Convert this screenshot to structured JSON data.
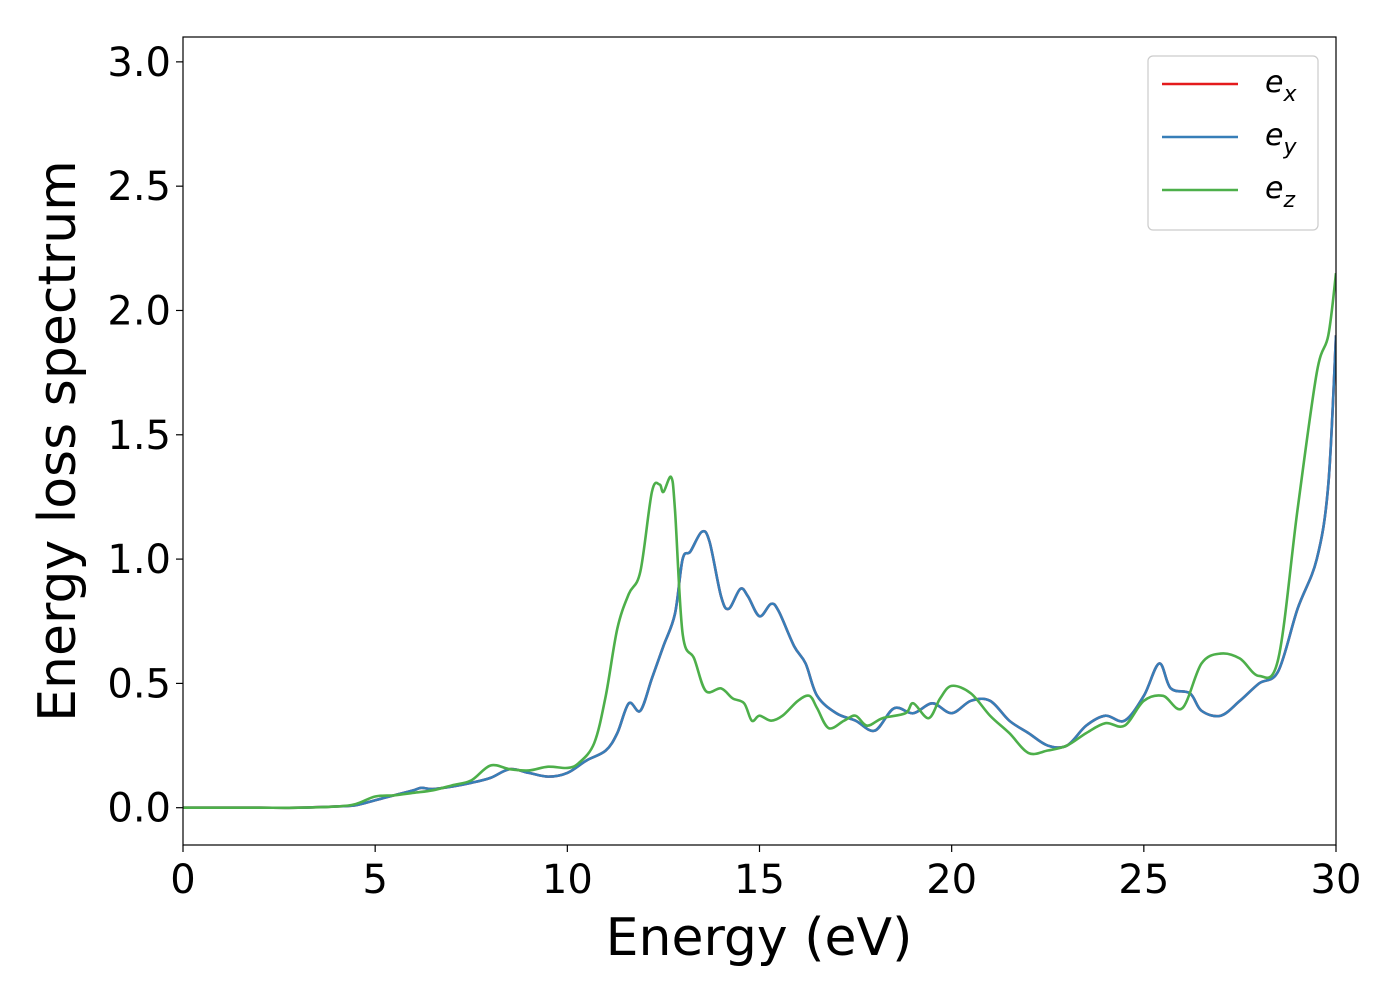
{
  "chart_data": {
    "type": "line",
    "title": "",
    "xlabel": "Energy (eV)",
    "ylabel": "Energy loss spectrum",
    "xlim": [
      0,
      30
    ],
    "ylim": [
      -0.15,
      3.1
    ],
    "xticks": [
      0,
      5,
      10,
      15,
      20,
      25,
      30
    ],
    "xtick_labels": [
      "0",
      "5",
      "10",
      "15",
      "20",
      "25",
      "30"
    ],
    "yticks": [
      0.0,
      0.5,
      1.0,
      1.5,
      2.0,
      2.5,
      3.0
    ],
    "ytick_labels": [
      "0.0",
      "0.5",
      "1.0",
      "1.5",
      "2.0",
      "2.5",
      "3.0"
    ],
    "grid": false,
    "legend_position": "top-right",
    "series": [
      {
        "name": "e_x",
        "legend_main": "e",
        "legend_sub": "x",
        "color": "#e41a1c",
        "points": [
          [
            0,
            0
          ],
          [
            1,
            0
          ],
          [
            2,
            0
          ],
          [
            3,
            0
          ],
          [
            4,
            0.005
          ],
          [
            4.5,
            0.01
          ],
          [
            5,
            0.03
          ],
          [
            5.5,
            0.05
          ],
          [
            6,
            0.07
          ],
          [
            6.2,
            0.08
          ],
          [
            6.5,
            0.075
          ],
          [
            7,
            0.085
          ],
          [
            7.5,
            0.1
          ],
          [
            8,
            0.12
          ],
          [
            8.5,
            0.155
          ],
          [
            9,
            0.14
          ],
          [
            9.5,
            0.125
          ],
          [
            10,
            0.14
          ],
          [
            10.5,
            0.19
          ],
          [
            11,
            0.23
          ],
          [
            11.3,
            0.3
          ],
          [
            11.6,
            0.42
          ],
          [
            11.9,
            0.39
          ],
          [
            12.2,
            0.52
          ],
          [
            12.5,
            0.65
          ],
          [
            12.8,
            0.78
          ],
          [
            13.0,
            1.0
          ],
          [
            13.2,
            1.03
          ],
          [
            13.5,
            1.11
          ],
          [
            13.7,
            1.07
          ],
          [
            14.0,
            0.85
          ],
          [
            14.2,
            0.8
          ],
          [
            14.5,
            0.88
          ],
          [
            14.7,
            0.85
          ],
          [
            15.0,
            0.77
          ],
          [
            15.3,
            0.82
          ],
          [
            15.5,
            0.79
          ],
          [
            15.9,
            0.65
          ],
          [
            16.2,
            0.58
          ],
          [
            16.5,
            0.45
          ],
          [
            17.0,
            0.38
          ],
          [
            17.5,
            0.35
          ],
          [
            18.0,
            0.31
          ],
          [
            18.5,
            0.4
          ],
          [
            19.0,
            0.38
          ],
          [
            19.5,
            0.42
          ],
          [
            20.0,
            0.38
          ],
          [
            20.5,
            0.43
          ],
          [
            21.0,
            0.43
          ],
          [
            21.5,
            0.35
          ],
          [
            22.0,
            0.3
          ],
          [
            22.5,
            0.25
          ],
          [
            23.0,
            0.25
          ],
          [
            23.5,
            0.33
          ],
          [
            24.0,
            0.37
          ],
          [
            24.5,
            0.35
          ],
          [
            25.0,
            0.45
          ],
          [
            25.4,
            0.58
          ],
          [
            25.7,
            0.48
          ],
          [
            26.2,
            0.46
          ],
          [
            26.5,
            0.39
          ],
          [
            27.0,
            0.37
          ],
          [
            27.5,
            0.43
          ],
          [
            28.0,
            0.5
          ],
          [
            28.5,
            0.55
          ],
          [
            29.0,
            0.8
          ],
          [
            29.5,
            1.0
          ],
          [
            29.8,
            1.3
          ],
          [
            30.0,
            1.9
          ]
        ]
      },
      {
        "name": "e_y",
        "legend_main": "e",
        "legend_sub": "y",
        "color": "#377eb8",
        "points": [
          [
            0,
            0
          ],
          [
            1,
            0
          ],
          [
            2,
            0
          ],
          [
            3,
            0
          ],
          [
            4,
            0.005
          ],
          [
            4.5,
            0.01
          ],
          [
            5,
            0.03
          ],
          [
            5.5,
            0.05
          ],
          [
            6,
            0.07
          ],
          [
            6.2,
            0.08
          ],
          [
            6.5,
            0.075
          ],
          [
            7,
            0.085
          ],
          [
            7.5,
            0.1
          ],
          [
            8,
            0.12
          ],
          [
            8.5,
            0.155
          ],
          [
            9,
            0.14
          ],
          [
            9.5,
            0.125
          ],
          [
            10,
            0.14
          ],
          [
            10.5,
            0.19
          ],
          [
            11,
            0.23
          ],
          [
            11.3,
            0.3
          ],
          [
            11.6,
            0.42
          ],
          [
            11.9,
            0.39
          ],
          [
            12.2,
            0.52
          ],
          [
            12.5,
            0.65
          ],
          [
            12.8,
            0.78
          ],
          [
            13.0,
            1.0
          ],
          [
            13.2,
            1.03
          ],
          [
            13.5,
            1.11
          ],
          [
            13.7,
            1.07
          ],
          [
            14.0,
            0.85
          ],
          [
            14.2,
            0.8
          ],
          [
            14.5,
            0.88
          ],
          [
            14.7,
            0.85
          ],
          [
            15.0,
            0.77
          ],
          [
            15.3,
            0.82
          ],
          [
            15.5,
            0.79
          ],
          [
            15.9,
            0.65
          ],
          [
            16.2,
            0.58
          ],
          [
            16.5,
            0.45
          ],
          [
            17.0,
            0.38
          ],
          [
            17.5,
            0.35
          ],
          [
            18.0,
            0.31
          ],
          [
            18.5,
            0.4
          ],
          [
            19.0,
            0.38
          ],
          [
            19.5,
            0.42
          ],
          [
            20.0,
            0.38
          ],
          [
            20.5,
            0.43
          ],
          [
            21.0,
            0.43
          ],
          [
            21.5,
            0.35
          ],
          [
            22.0,
            0.3
          ],
          [
            22.5,
            0.25
          ],
          [
            23.0,
            0.25
          ],
          [
            23.5,
            0.33
          ],
          [
            24.0,
            0.37
          ],
          [
            24.5,
            0.35
          ],
          [
            25.0,
            0.45
          ],
          [
            25.4,
            0.58
          ],
          [
            25.7,
            0.48
          ],
          [
            26.2,
            0.46
          ],
          [
            26.5,
            0.39
          ],
          [
            27.0,
            0.37
          ],
          [
            27.5,
            0.43
          ],
          [
            28.0,
            0.5
          ],
          [
            28.5,
            0.55
          ],
          [
            29.0,
            0.8
          ],
          [
            29.5,
            1.0
          ],
          [
            29.8,
            1.3
          ],
          [
            30.0,
            1.9
          ]
        ]
      },
      {
        "name": "e_z",
        "legend_main": "e",
        "legend_sub": "z",
        "color": "#4daf4a",
        "points": [
          [
            0,
            0
          ],
          [
            1,
            0
          ],
          [
            2,
            0
          ],
          [
            3,
            0
          ],
          [
            4,
            0.005
          ],
          [
            4.5,
            0.015
          ],
          [
            5,
            0.045
          ],
          [
            5.5,
            0.05
          ],
          [
            6,
            0.06
          ],
          [
            6.5,
            0.07
          ],
          [
            7,
            0.09
          ],
          [
            7.5,
            0.11
          ],
          [
            8,
            0.17
          ],
          [
            8.5,
            0.155
          ],
          [
            9,
            0.15
          ],
          [
            9.5,
            0.165
          ],
          [
            10,
            0.16
          ],
          [
            10.3,
            0.18
          ],
          [
            10.7,
            0.26
          ],
          [
            11,
            0.45
          ],
          [
            11.3,
            0.72
          ],
          [
            11.6,
            0.86
          ],
          [
            11.9,
            0.95
          ],
          [
            12.2,
            1.27
          ],
          [
            12.4,
            1.3
          ],
          [
            12.5,
            1.27
          ],
          [
            12.7,
            1.33
          ],
          [
            12.8,
            1.2
          ],
          [
            13.0,
            0.7
          ],
          [
            13.3,
            0.6
          ],
          [
            13.6,
            0.47
          ],
          [
            14.0,
            0.48
          ],
          [
            14.3,
            0.44
          ],
          [
            14.6,
            0.42
          ],
          [
            14.8,
            0.35
          ],
          [
            15.0,
            0.37
          ],
          [
            15.3,
            0.35
          ],
          [
            15.6,
            0.37
          ],
          [
            16.0,
            0.43
          ],
          [
            16.3,
            0.45
          ],
          [
            16.5,
            0.4
          ],
          [
            16.8,
            0.32
          ],
          [
            17.2,
            0.35
          ],
          [
            17.5,
            0.37
          ],
          [
            17.8,
            0.33
          ],
          [
            18.2,
            0.36
          ],
          [
            18.8,
            0.38
          ],
          [
            19.0,
            0.42
          ],
          [
            19.4,
            0.36
          ],
          [
            19.7,
            0.44
          ],
          [
            20.0,
            0.49
          ],
          [
            20.5,
            0.46
          ],
          [
            21.0,
            0.37
          ],
          [
            21.5,
            0.3
          ],
          [
            22.0,
            0.22
          ],
          [
            22.5,
            0.23
          ],
          [
            23.0,
            0.25
          ],
          [
            23.5,
            0.3
          ],
          [
            24.0,
            0.34
          ],
          [
            24.5,
            0.33
          ],
          [
            25.0,
            0.43
          ],
          [
            25.5,
            0.45
          ],
          [
            26.0,
            0.4
          ],
          [
            26.5,
            0.58
          ],
          [
            27.0,
            0.62
          ],
          [
            27.5,
            0.6
          ],
          [
            28.0,
            0.53
          ],
          [
            28.5,
            0.6
          ],
          [
            29.0,
            1.2
          ],
          [
            29.5,
            1.75
          ],
          [
            29.8,
            1.9
          ],
          [
            30.0,
            2.15
          ]
        ]
      }
    ]
  }
}
